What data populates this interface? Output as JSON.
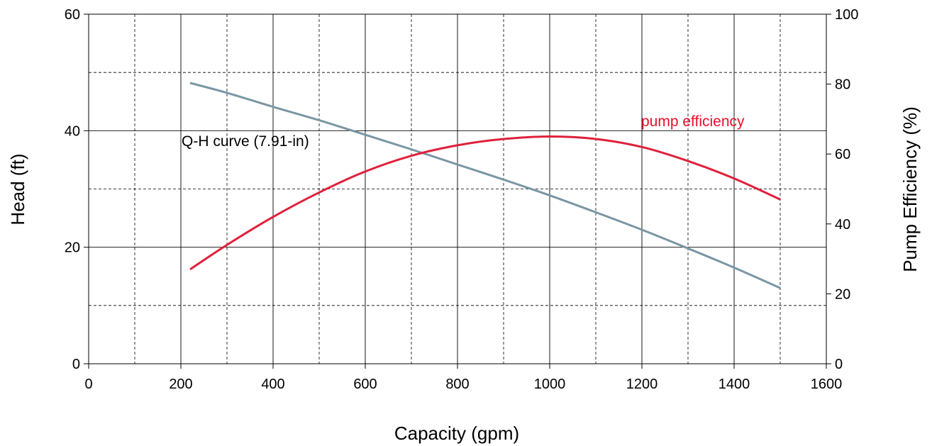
{
  "chart_data": {
    "type": "line",
    "xlabel": "Capacity (gpm)",
    "ylabel_left": "Head (ft)",
    "ylabel_right": "Pump Efficiency (%)",
    "xlim": [
      0,
      1600
    ],
    "ylim_left": [
      0,
      60
    ],
    "ylim_right": [
      0,
      100
    ],
    "x_ticks": [
      0,
      200,
      400,
      600,
      800,
      1000,
      1200,
      1400,
      1600
    ],
    "y_ticks_left": [
      0,
      20,
      40,
      60
    ],
    "y_ticks_right": [
      0,
      20,
      40,
      60,
      80,
      100
    ],
    "grid": true,
    "series": [
      {
        "name": "Q-H curve (7.91-in)",
        "axis": "left",
        "color": "#7a96a4",
        "x": [
          220,
          300,
          400,
          500,
          600,
          700,
          800,
          900,
          1000,
          1100,
          1200,
          1300,
          1400,
          1500
        ],
        "y": [
          48.2,
          46.5,
          44.1,
          41.8,
          39.3,
          36.8,
          34.2,
          31.6,
          28.9,
          26.0,
          23.0,
          19.8,
          16.5,
          13.0
        ]
      },
      {
        "name": "pump efficiency",
        "axis": "right",
        "color": "#e0203c",
        "x": [
          220,
          300,
          400,
          500,
          600,
          700,
          800,
          900,
          1000,
          1100,
          1200,
          1300,
          1400,
          1500
        ],
        "y": [
          27,
          34,
          42,
          49,
          55,
          59.5,
          62.5,
          64.3,
          65,
          64.3,
          62,
          58,
          53,
          47
        ]
      }
    ],
    "annotations": [
      {
        "text": "Q-H curve (7.91-in)",
        "color": "#000000"
      },
      {
        "text": "pump efficiency",
        "color": "#e8102a"
      }
    ]
  }
}
